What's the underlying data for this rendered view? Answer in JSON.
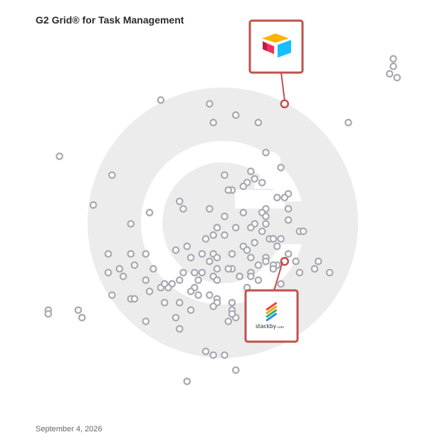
{
  "header": {
    "title": "G2 Grid® for Task Management"
  },
  "footer": {
    "date": "September 4, 2026"
  },
  "colors": {
    "point_stroke": "#a8a8b3",
    "highlight": "#c0504d",
    "watermark": "#ececec"
  },
  "callouts": [
    {
      "name": "airtable",
      "logo_icon": "airtable-logo-icon",
      "x": 85,
      "y": 83
    },
    {
      "name": "stackby",
      "logo_icon": "stackby-logo-icon",
      "logo_text": "stackby",
      "logo_suffix": ".com",
      "x": 78,
      "y": 40
    }
  ],
  "chart_data": {
    "type": "scatter",
    "title": "G2 Grid® for Task Management",
    "xlim": [
      0,
      100
    ],
    "ylim": [
      0,
      100
    ],
    "grid": "quadrants at 50/50",
    "points": [
      [
        95,
        94
      ],
      [
        95,
        92
      ],
      [
        94,
        90
      ],
      [
        96,
        89
      ],
      [
        33,
        83
      ],
      [
        46,
        82
      ],
      [
        53,
        79
      ],
      [
        47,
        77
      ],
      [
        59,
        77
      ],
      [
        83,
        77
      ],
      [
        6,
        68
      ],
      [
        61,
        69
      ],
      [
        57,
        64
      ],
      [
        65,
        65
      ],
      [
        58,
        62
      ],
      [
        50,
        63
      ],
      [
        56,
        61
      ],
      [
        60,
        61
      ],
      [
        55,
        60
      ],
      [
        20,
        63
      ],
      [
        52,
        59
      ],
      [
        51,
        59
      ],
      [
        67,
        58
      ],
      [
        64,
        57
      ],
      [
        66,
        57
      ],
      [
        38,
        56
      ],
      [
        15,
        55
      ],
      [
        39,
        54
      ],
      [
        67,
        54
      ],
      [
        61,
        54
      ],
      [
        30,
        53
      ],
      [
        46,
        54
      ],
      [
        55,
        53
      ],
      [
        60,
        53
      ],
      [
        61,
        52
      ],
      [
        50,
        52
      ],
      [
        25,
        50
      ],
      [
        67,
        51
      ],
      [
        58,
        50
      ],
      [
        61,
        50
      ],
      [
        57,
        49
      ],
      [
        70,
        48
      ],
      [
        48,
        49
      ],
      [
        60,
        48
      ],
      [
        53,
        49
      ],
      [
        71,
        48
      ],
      [
        47,
        47
      ],
      [
        50,
        47
      ],
      [
        62,
        46
      ],
      [
        65,
        46
      ],
      [
        63,
        46
      ],
      [
        58,
        45
      ],
      [
        55,
        44
      ],
      [
        64,
        44
      ],
      [
        45,
        46
      ],
      [
        40,
        44
      ],
      [
        37,
        43
      ],
      [
        56,
        43
      ],
      [
        52,
        42
      ],
      [
        19,
        42
      ],
      [
        25,
        42
      ],
      [
        29,
        42
      ],
      [
        44,
        42
      ],
      [
        47,
        42
      ],
      [
        57,
        41
      ],
      [
        61,
        41
      ],
      [
        67,
        42
      ],
      [
        41,
        41
      ],
      [
        46,
        40
      ],
      [
        48,
        41
      ],
      [
        69,
        40
      ],
      [
        61,
        40
      ],
      [
        64,
        39
      ],
      [
        63,
        39
      ],
      [
        59,
        39
      ],
      [
        75,
        40
      ],
      [
        26,
        39
      ],
      [
        31,
        38
      ],
      [
        22,
        38
      ],
      [
        48,
        38
      ],
      [
        63,
        38
      ],
      [
        42,
        37
      ],
      [
        39,
        37
      ],
      [
        44,
        37
      ],
      [
        19,
        37
      ],
      [
        43,
        35
      ],
      [
        52,
        38
      ],
      [
        51,
        38
      ],
      [
        57,
        37
      ],
      [
        74,
        38
      ],
      [
        70,
        37
      ],
      [
        78,
        37
      ],
      [
        23,
        36
      ],
      [
        29,
        35
      ],
      [
        38,
        35
      ],
      [
        54,
        36
      ],
      [
        57,
        36
      ],
      [
        59,
        35
      ],
      [
        47,
        36
      ],
      [
        36,
        34
      ],
      [
        42,
        33
      ],
      [
        48,
        35
      ],
      [
        35,
        33
      ],
      [
        33,
        33
      ],
      [
        30,
        32
      ],
      [
        34,
        34
      ],
      [
        56,
        33
      ],
      [
        41,
        32
      ],
      [
        46,
        31
      ],
      [
        43,
        31
      ],
      [
        20,
        31
      ],
      [
        65,
        34
      ],
      [
        38,
        29
      ],
      [
        48,
        30
      ],
      [
        52,
        29
      ],
      [
        61,
        29
      ],
      [
        34,
        29
      ],
      [
        25,
        30
      ],
      [
        26,
        30
      ],
      [
        41,
        27
      ],
      [
        48,
        29
      ],
      [
        47,
        28
      ],
      [
        37,
        25
      ],
      [
        29,
        24
      ],
      [
        12,
        25
      ],
      [
        51,
        24
      ],
      [
        53,
        25
      ],
      [
        3,
        27
      ],
      [
        3,
        26
      ],
      [
        11,
        27
      ],
      [
        52,
        27
      ],
      [
        52,
        26
      ],
      [
        38,
        22
      ],
      [
        45,
        16
      ],
      [
        50,
        15
      ],
      [
        47,
        15
      ],
      [
        40,
        8
      ],
      [
        53,
        11
      ]
    ],
    "highlighted": [
      {
        "label": "Airtable",
        "x": 66,
        "y": 82
      },
      {
        "label": "Stackby",
        "x": 66,
        "y": 40
      }
    ]
  }
}
